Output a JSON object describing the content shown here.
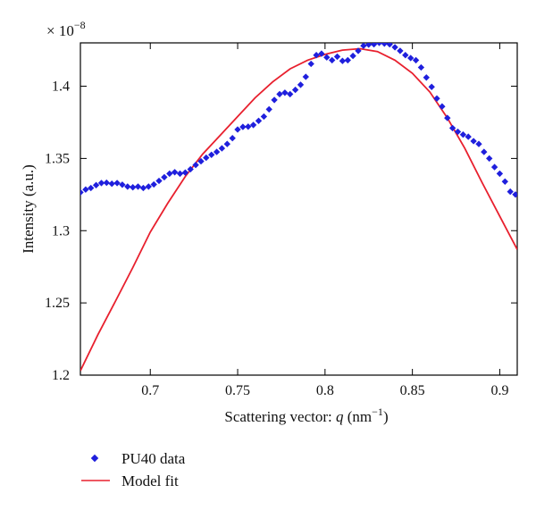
{
  "chart_data": {
    "type": "scatter",
    "title": "",
    "xlabel": "Scattering vector: q (nm−1)",
    "xlabel_parts": {
      "prefix": "Scattering vector: ",
      "variable": "q",
      "unit_open": " (nm",
      "unit_exp": "−1",
      "unit_close": ")"
    },
    "ylabel": "Intensity (a.u.)",
    "y_multiplier": {
      "base": "× 10",
      "exponent": "−8"
    },
    "xlim": [
      0.66,
      0.91
    ],
    "ylim": [
      1.2,
      1.43
    ],
    "x_ticks": [
      "0.7",
      "0.75",
      "0.8",
      "0.85",
      "0.9"
    ],
    "y_ticks": [
      "1.2",
      "1.25",
      "1.3",
      "1.35",
      "1.4"
    ],
    "grid": false,
    "legend_position": "bottom-left",
    "series": [
      {
        "name": "PU40 data",
        "kind": "markers",
        "color": "#1f1fdd",
        "x": [
          0.66,
          0.663,
          0.666,
          0.669,
          0.672,
          0.675,
          0.678,
          0.681,
          0.684,
          0.687,
          0.69,
          0.693,
          0.696,
          0.699,
          0.702,
          0.705,
          0.708,
          0.711,
          0.714,
          0.717,
          0.72,
          0.723,
          0.726,
          0.729,
          0.732,
          0.735,
          0.738,
          0.741,
          0.744,
          0.747,
          0.75,
          0.753,
          0.756,
          0.759,
          0.762,
          0.765,
          0.768,
          0.771,
          0.774,
          0.777,
          0.78,
          0.783,
          0.786,
          0.789,
          0.792,
          0.795,
          0.798,
          0.801,
          0.804,
          0.807,
          0.81,
          0.813,
          0.816,
          0.819,
          0.822,
          0.825,
          0.828,
          0.831,
          0.834,
          0.837,
          0.84,
          0.843,
          0.846,
          0.849,
          0.852,
          0.855,
          0.858,
          0.861,
          0.864,
          0.867,
          0.87,
          0.873,
          0.876,
          0.879,
          0.882,
          0.885,
          0.888,
          0.891,
          0.894,
          0.897,
          0.9,
          0.903,
          0.906,
          0.909
        ],
        "y": [
          1.3265,
          1.3285,
          1.3295,
          1.3315,
          1.333,
          1.3332,
          1.3325,
          1.333,
          1.3318,
          1.3305,
          1.33,
          1.3305,
          1.3295,
          1.3305,
          1.332,
          1.3345,
          1.337,
          1.3395,
          1.3405,
          1.3395,
          1.3402,
          1.3425,
          1.3455,
          1.348,
          1.3505,
          1.3525,
          1.3545,
          1.357,
          1.36,
          1.364,
          1.37,
          1.3718,
          1.372,
          1.3732,
          1.376,
          1.379,
          1.384,
          1.3905,
          1.3945,
          1.3955,
          1.3945,
          1.3975,
          1.401,
          1.4065,
          1.4155,
          1.4215,
          1.4225,
          1.42,
          1.418,
          1.4205,
          1.4175,
          1.418,
          1.421,
          1.4245,
          1.428,
          1.4288,
          1.429,
          1.43,
          1.4295,
          1.429,
          1.427,
          1.4245,
          1.4215,
          1.4195,
          1.418,
          1.413,
          1.406,
          1.3995,
          1.3915,
          1.386,
          1.378,
          1.371,
          1.3685,
          1.3665,
          1.365,
          1.362,
          1.36,
          1.3545,
          1.35,
          1.344,
          1.3395,
          1.334,
          1.327,
          1.325
        ]
      },
      {
        "name": "Model fit",
        "kind": "line",
        "color": "#e8202e",
        "x": [
          0.66,
          0.67,
          0.68,
          0.69,
          0.7,
          0.71,
          0.72,
          0.73,
          0.74,
          0.75,
          0.76,
          0.77,
          0.78,
          0.79,
          0.8,
          0.81,
          0.82,
          0.83,
          0.84,
          0.85,
          0.86,
          0.87,
          0.88,
          0.89,
          0.9,
          0.91
        ],
        "y": [
          1.203,
          1.228,
          1.251,
          1.2745,
          1.299,
          1.319,
          1.3375,
          1.353,
          1.366,
          1.379,
          1.392,
          1.403,
          1.412,
          1.418,
          1.422,
          1.425,
          1.426,
          1.424,
          1.418,
          1.409,
          1.396,
          1.378,
          1.357,
          1.333,
          1.31,
          1.287
        ]
      }
    ]
  }
}
